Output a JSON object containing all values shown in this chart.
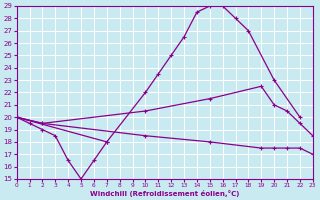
{
  "xlabel": "Windchill (Refroidissement éolien,°C)",
  "bg_color": "#c8eaf0",
  "line_color": "#8b008b",
  "grid_color": "#ffffff",
  "xlim": [
    0,
    23
  ],
  "ylim": [
    15,
    29
  ],
  "xticks": [
    0,
    1,
    2,
    3,
    4,
    5,
    6,
    7,
    8,
    9,
    10,
    11,
    12,
    13,
    14,
    15,
    16,
    17,
    18,
    19,
    20,
    21,
    22,
    23
  ],
  "yticks": [
    15,
    16,
    17,
    18,
    19,
    20,
    21,
    22,
    23,
    24,
    25,
    26,
    27,
    28,
    29
  ],
  "series": [
    {
      "x": [
        0,
        7,
        10,
        11,
        12,
        13,
        14,
        15,
        16,
        17,
        18,
        20,
        22
      ],
      "y": [
        20.0,
        18.0,
        22.0,
        23.5,
        25.0,
        26.5,
        28.5,
        29.0,
        29.0,
        28.0,
        27.0,
        23.0,
        20.0
      ]
    },
    {
      "x": [
        0,
        1,
        2,
        3,
        4,
        5,
        6,
        7
      ],
      "y": [
        20.0,
        19.5,
        19.0,
        18.5,
        16.5,
        15.0,
        16.5,
        18.0
      ]
    },
    {
      "x": [
        0,
        2,
        10,
        15,
        19,
        20,
        21,
        22,
        23
      ],
      "y": [
        20.0,
        19.5,
        20.5,
        21.5,
        22.5,
        21.0,
        20.5,
        19.5,
        18.5
      ]
    },
    {
      "x": [
        0,
        2,
        10,
        15,
        19,
        20,
        21,
        22,
        23
      ],
      "y": [
        20.0,
        19.5,
        18.5,
        18.0,
        17.5,
        17.5,
        17.5,
        17.5,
        17.0
      ]
    }
  ]
}
